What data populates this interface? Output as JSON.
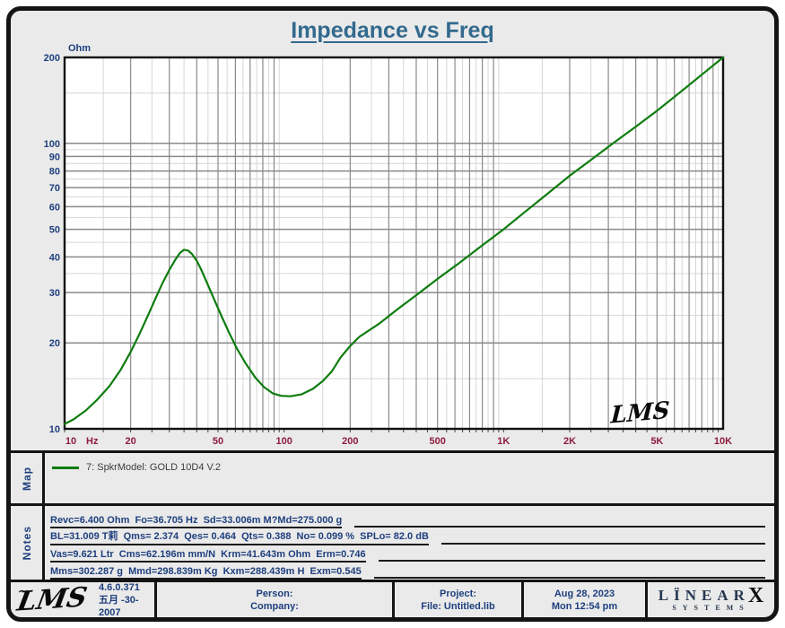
{
  "title": "Impedance vs Freq",
  "colors": {
    "title": "#336a8e",
    "y_axis_labels": "#1e3f7e",
    "x_axis_labels": "#8f1b3c",
    "curve": "#0e7c0e",
    "grid_major": "#8a8a8a",
    "grid_minor": "#d6d6d6",
    "plot_border": "#111111",
    "panel_background": "#eaeaea"
  },
  "chart_data": {
    "type": "line",
    "title": "Impedance vs Freq",
    "grid": true,
    "legend_position": "bottom-map-panel",
    "watermark": "LMS",
    "x_axis": {
      "unit": "Hz",
      "scale": "log",
      "min": 10,
      "max": 10000,
      "ticks": [
        {
          "value": 10,
          "label": "10"
        },
        {
          "value": 20,
          "label": "20"
        },
        {
          "value": 50,
          "label": "50"
        },
        {
          "value": 100,
          "label": "100"
        },
        {
          "value": 200,
          "label": "200"
        },
        {
          "value": 500,
          "label": "500"
        },
        {
          "value": 1000,
          "label": "1K"
        },
        {
          "value": 2000,
          "label": "2K"
        },
        {
          "value": 5000,
          "label": "5K"
        },
        {
          "value": 10000,
          "label": "10K"
        }
      ]
    },
    "y_axis": {
      "unit": "Ohm",
      "scale": "log",
      "min": 10,
      "max": 200,
      "ticks": [
        {
          "value": 200,
          "label": "200"
        },
        {
          "value": 100,
          "label": "100"
        },
        {
          "value": 90,
          "label": "90"
        },
        {
          "value": 80,
          "label": "80"
        },
        {
          "value": 70,
          "label": "70"
        },
        {
          "value": 60,
          "label": "60"
        },
        {
          "value": 50,
          "label": "50"
        },
        {
          "value": 40,
          "label": "40"
        },
        {
          "value": 30,
          "label": "30"
        },
        {
          "value": 20,
          "label": "20"
        },
        {
          "value": 10,
          "label": "10"
        }
      ]
    },
    "series": [
      {
        "name": "7: SpkrModel: GOLD  10D4 V.2",
        "color": "#0e7c0e",
        "points": [
          [
            10,
            10.4
          ],
          [
            11,
            10.8
          ],
          [
            12.5,
            11.6
          ],
          [
            14,
            12.6
          ],
          [
            16,
            14.1
          ],
          [
            18,
            16.1
          ],
          [
            20,
            18.6
          ],
          [
            22,
            21.6
          ],
          [
            24,
            25.0
          ],
          [
            26,
            28.7
          ],
          [
            28,
            32.5
          ],
          [
            30,
            36.0
          ],
          [
            32,
            39.2
          ],
          [
            33.5,
            41.3
          ],
          [
            35,
            42.4
          ],
          [
            36.5,
            42.1
          ],
          [
            38,
            41.0
          ],
          [
            40,
            38.8
          ],
          [
            42,
            36.0
          ],
          [
            45,
            31.9
          ],
          [
            48,
            28.4
          ],
          [
            52,
            24.7
          ],
          [
            56,
            21.8
          ],
          [
            61,
            19.1
          ],
          [
            67,
            16.9
          ],
          [
            74,
            15.1
          ],
          [
            81,
            14.0
          ],
          [
            89,
            13.3
          ],
          [
            97,
            13.05
          ],
          [
            107,
            13.0
          ],
          [
            120,
            13.2
          ],
          [
            135,
            13.8
          ],
          [
            150,
            14.7
          ],
          [
            165,
            15.9
          ],
          [
            181,
            17.8
          ],
          [
            200,
            19.5
          ],
          [
            220,
            21.0
          ],
          [
            270,
            23.3
          ],
          [
            330,
            26.3
          ],
          [
            400,
            29.4
          ],
          [
            500,
            33.5
          ],
          [
            620,
            37.8
          ],
          [
            780,
            43.3
          ],
          [
            1000,
            50
          ],
          [
            1250,
            57.5
          ],
          [
            1600,
            67
          ],
          [
            2000,
            77
          ],
          [
            2500,
            87.5
          ],
          [
            3150,
            100
          ],
          [
            4000,
            114.4
          ],
          [
            5000,
            130
          ],
          [
            6300,
            150
          ],
          [
            8000,
            174
          ],
          [
            10000,
            200
          ]
        ]
      }
    ]
  },
  "map_panel": {
    "label": "Map",
    "legend_text": "7: SpkrModel: GOLD  10D4 V.2"
  },
  "notes_panel": {
    "label": "Notes",
    "lines": [
      "Revc=6.400 Ohm  Fo=36.705 Hz  Sd=33.006m M?Md=275.000 g",
      "BL=31.009 T莉  Qms= 2.374  Qes= 0.464  Qts= 0.388  No= 0.099 %  SPLo= 82.0 dB",
      "Vas=9.621 Ltr  Cms=62.196m mm/N  Krm=41.643m Ohm  Erm=0.746",
      "Mms=302.287 g  Mmd=298.839m Kg  Kxm=288.439m H  Exm=0.545"
    ]
  },
  "footer": {
    "logo": "LMS",
    "logo_tilde": "~",
    "version": "4.6.0.371",
    "version_date": "五月 -30-2007",
    "person_label": "Person:",
    "company_label": "Company:",
    "project_label": "Project:",
    "file_label": "File: Untitled.lib",
    "date": "Aug 28, 2023",
    "time": "Mon 12:54 pm",
    "brand_name": "LÏNEAR",
    "brand_x": "X",
    "brand_sub": "SYSTEMS"
  }
}
